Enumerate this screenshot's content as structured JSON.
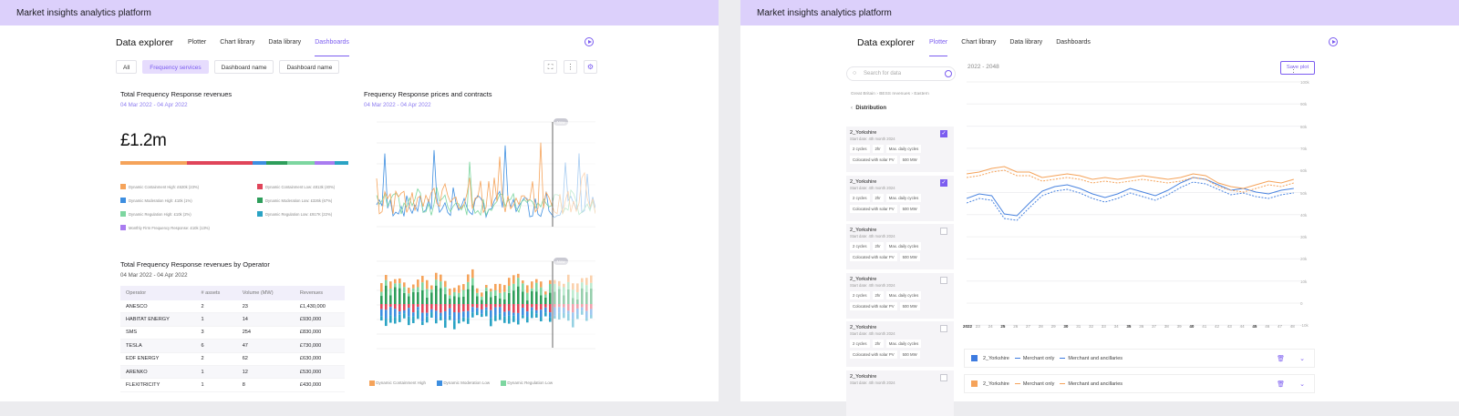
{
  "app_title": "Market insights analytics platform",
  "nav": {
    "title": "Data explorer",
    "tabs": [
      "Plotter",
      "Chart library",
      "Data library",
      "Dashboards"
    ]
  },
  "filters": [
    "All",
    "Frequency services",
    "Dashboard name",
    "Dashboard name"
  ],
  "colors": {
    "accent": "#7b5cf0",
    "header_bg": "#dcd0fb",
    "orange": "#f5a35a",
    "red": "#e0455a",
    "blue": "#3d8ee0",
    "green": "#3ec27a",
    "lightgreen": "#7dd6a0",
    "teal": "#2aa3c4",
    "purple": "#a97cf0"
  },
  "card_total": {
    "title": "Total Frequency Response revenues",
    "date": "04 Mar 2022 - 04 Apr 2022",
    "value": "£1.2m",
    "legend": [
      {
        "label": "Dynamic Containment High: £620k (23%)",
        "color": "#f5a35a"
      },
      {
        "label": "Dynamic Containment Low: £813k (40%)",
        "color": "#e0455a"
      },
      {
        "label": "Dynamic Moderation High: £10k (1%)",
        "color": "#3d8ee0"
      },
      {
        "label": "Dynamic Moderation Low: £326k (67%)",
        "color": "#2e9e5b"
      },
      {
        "label": "Dynamic Regulation High: £10k (2%)",
        "color": "#7dd6a0"
      },
      {
        "label": "Dynamic Regulation Low: £917K (22%)",
        "color": "#2aa3c4"
      },
      {
        "label": "Monthly Firm Frequency Response: £10k (13%)",
        "color": "#a97cf0"
      }
    ]
  },
  "card_prices": {
    "title": "Frequency Response prices and contracts",
    "date": "04 Mar 2022 - 04 Apr 2022",
    "now": "Now",
    "legend": [
      "Dynamic Containment High",
      "Dynamic Moderation Low",
      "Dynamic Regulation Low"
    ]
  },
  "card_operator": {
    "title": "Total Frequency Response revenues by Operator",
    "date": "04 Mar 2022 - 04 Apr 2022",
    "headers": [
      "Operator",
      "# assets",
      "Volume (MW)",
      "Revenues"
    ],
    "rows": [
      [
        "ANESCO",
        "2",
        "23",
        "£1,430,000"
      ],
      [
        "HABITAT ENERGY",
        "1",
        "14",
        "£930,000"
      ],
      [
        "SMS",
        "3",
        "254",
        "£830,000"
      ],
      [
        "TESLA",
        "6",
        "47",
        "£730,000"
      ],
      [
        "EDF ENERGY",
        "2",
        "62",
        "£630,000"
      ],
      [
        "ARENKO",
        "1",
        "12",
        "£530,000"
      ],
      [
        "FLEXITRICITY",
        "1",
        "8",
        "£430,000"
      ]
    ]
  },
  "right": {
    "title": "Data explorer",
    "tabs": [
      "Plotter",
      "Chart library",
      "Data library",
      "Dashboards"
    ],
    "search_placeholder": "Search for data",
    "breadcrumb": "Great Britain  ›  BESS revenues  ›  Eastern",
    "distribution": "Distribution",
    "date_range": "2022 - 2048",
    "save": "Save plot",
    "items": [
      {
        "name": "2_Yorkshire",
        "start": "Start date: 4th month 2024",
        "tags": [
          "2 cycles",
          "2hr",
          "Max. daily cycles",
          "Colocated with solar PV",
          "500 MW"
        ],
        "checked": true
      },
      {
        "name": "2_Yorkshire",
        "start": "Start date: 4th month 2024",
        "tags": [
          "2 cycles",
          "2hr",
          "Max. daily cycles",
          "Colocated with solar PV",
          "500 MW"
        ],
        "checked": true
      },
      {
        "name": "2_Yorkshire",
        "start": "Start date: 4th month 2024",
        "tags": [
          "2 cycles",
          "2hr",
          "Max. daily cycles",
          "Colocated with solar PV",
          "500 MW"
        ],
        "checked": false
      },
      {
        "name": "2_Yorkshire",
        "start": "Start date: 4th month 2024",
        "tags": [
          "2 cycles",
          "2hr",
          "Max. daily cycles",
          "Colocated with solar PV",
          "500 MW"
        ],
        "checked": false
      },
      {
        "name": "2_Yorkshire",
        "start": "Start date: 4th month 2024",
        "tags": [
          "2 cycles",
          "2hr",
          "Max. daily cycles",
          "Colocated with solar PV",
          "500 MW"
        ],
        "checked": false
      },
      {
        "name": "2_Yorkshire",
        "start": "Start date: 4th month 2024",
        "tags": [],
        "checked": false
      }
    ],
    "x_ticks": [
      "2022",
      "23",
      "24",
      "25",
      "26",
      "27",
      "28",
      "29",
      "30",
      "31",
      "32",
      "33",
      "34",
      "35",
      "36",
      "37",
      "38",
      "39",
      "40",
      "41",
      "42",
      "43",
      "44",
      "45",
      "46",
      "47",
      "48"
    ],
    "y_ticks": [
      "100k",
      "90k",
      "80k",
      "70k",
      "60k",
      "50k",
      "40k",
      "30k",
      "20k",
      "10k",
      "0",
      "-10k"
    ],
    "series_rows": [
      {
        "name": "2_Yorkshire",
        "color": "#3d7be0",
        "l1": "Merchant only",
        "l2": "Merchant and ancillaries"
      },
      {
        "name": "2_Yorkshire",
        "color": "#f5a35a",
        "l1": "Merchant only",
        "l2": "Merchant and ancillaries"
      }
    ]
  }
}
